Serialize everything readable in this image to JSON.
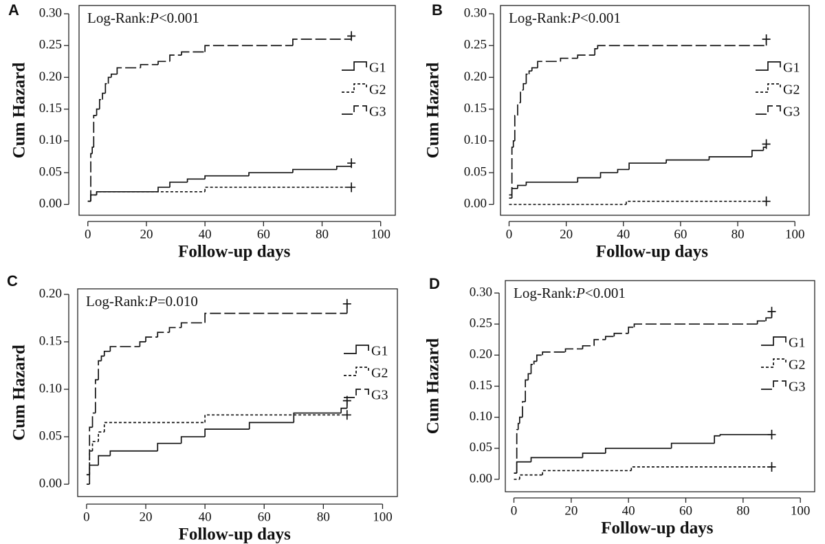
{
  "chart_data": [
    {
      "type": "step",
      "panel": "A",
      "y_label": "Cum Hazard",
      "x_label": "Follow-up days",
      "annotation": {
        "prefix": "Log-Rank:",
        "stat": "P",
        "value": "<0.001"
      },
      "xlim": [
        -3,
        105
      ],
      "ylim": [
        -0.017,
        0.313
      ],
      "xticks": [
        0,
        20,
        40,
        60,
        80,
        100
      ],
      "yticks": [
        {
          "value": 0,
          "label": "0.00"
        },
        {
          "value": 0.05,
          "label": "0.05"
        },
        {
          "value": 0.1,
          "label": "0.10"
        },
        {
          "value": 0.15,
          "label": "0.15"
        },
        {
          "value": 0.2,
          "label": "0.20"
        },
        {
          "value": 0.25,
          "label": "0.25"
        },
        {
          "value": 0.3,
          "label": "0.30"
        }
      ],
      "series": [
        {
          "name": "G1",
          "color": "#111111",
          "dash": "solid",
          "x": [
            0,
            1,
            3,
            24,
            28,
            34,
            40,
            55,
            70,
            85,
            90
          ],
          "values": [
            0.005,
            0.015,
            0.02,
            0.027,
            0.035,
            0.04,
            0.045,
            0.05,
            0.055,
            0.06,
            0.065
          ]
        },
        {
          "name": "G2",
          "color": "#111111",
          "dash": "dotted",
          "x": [
            0,
            1,
            3,
            40,
            90
          ],
          "values": [
            0.005,
            0.015,
            0.02,
            0.027,
            0.027
          ]
        },
        {
          "name": "G3",
          "color": "#111111",
          "dash": "dashed",
          "x": [
            0,
            1,
            1.5,
            2,
            3,
            4,
            5,
            6,
            7,
            8,
            10,
            18,
            24,
            28,
            32,
            40,
            70,
            90
          ],
          "values": [
            0.005,
            0.08,
            0.09,
            0.14,
            0.15,
            0.165,
            0.175,
            0.19,
            0.2,
            0.205,
            0.215,
            0.22,
            0.225,
            0.235,
            0.24,
            0.25,
            0.26,
            0.265
          ]
        }
      ]
    },
    {
      "type": "step",
      "panel": "B",
      "y_label": "Cum Hazard",
      "x_label": "Follow-up days",
      "annotation": {
        "prefix": "Log-Rank:",
        "stat": "P",
        "value": "<0.001"
      },
      "xlim": [
        -3,
        105
      ],
      "ylim": [
        -0.017,
        0.313
      ],
      "xticks": [
        0,
        20,
        40,
        60,
        80,
        100
      ],
      "yticks": [
        {
          "value": 0,
          "label": "0.00"
        },
        {
          "value": 0.05,
          "label": "0.05"
        },
        {
          "value": 0.1,
          "label": "0.10"
        },
        {
          "value": 0.15,
          "label": "0.15"
        },
        {
          "value": 0.2,
          "label": "0.20"
        },
        {
          "value": 0.25,
          "label": "0.25"
        },
        {
          "value": 0.3,
          "label": "0.30"
        }
      ],
      "series": [
        {
          "name": "G1",
          "color": "#111111",
          "dash": "solid",
          "x": [
            0,
            1,
            3,
            6,
            24,
            32,
            38,
            42,
            55,
            70,
            85,
            89,
            90
          ],
          "values": [
            0.015,
            0.025,
            0.03,
            0.035,
            0.042,
            0.05,
            0.055,
            0.065,
            0.07,
            0.075,
            0.085,
            0.09,
            0.095
          ]
        },
        {
          "name": "G2",
          "color": "#111111",
          "dash": "dotted",
          "x": [
            0,
            41,
            90
          ],
          "values": [
            0,
            0.005,
            0.005
          ]
        },
        {
          "name": "G3",
          "color": "#111111",
          "dash": "dashed",
          "x": [
            0,
            1,
            1.5,
            2,
            3,
            4,
            5,
            6,
            7,
            8,
            10,
            18,
            24,
            30,
            31,
            90
          ],
          "values": [
            0.01,
            0.09,
            0.1,
            0.14,
            0.16,
            0.18,
            0.19,
            0.205,
            0.21,
            0.215,
            0.225,
            0.23,
            0.235,
            0.245,
            0.25,
            0.26
          ]
        }
      ]
    },
    {
      "type": "step",
      "panel": "C",
      "y_label": "Cum Hazard",
      "x_label": "Follow-up days",
      "annotation": {
        "prefix": "Log-Rank:",
        "stat": "P",
        "value": "=0.010"
      },
      "xlim": [
        -3,
        105
      ],
      "ylim": [
        -0.013,
        0.2058
      ],
      "xticks": [
        0,
        20,
        40,
        60,
        80,
        100
      ],
      "yticks": [
        {
          "value": 0,
          "label": "0.00"
        },
        {
          "value": 0.05,
          "label": "0.05"
        },
        {
          "value": 0.1,
          "label": "0.10"
        },
        {
          "value": 0.15,
          "label": "0.15"
        },
        {
          "value": 0.2,
          "label": "0.20"
        }
      ],
      "series": [
        {
          "name": "G1",
          "color": "#111111",
          "dash": "solid",
          "x": [
            0,
            1,
            4,
            8,
            24,
            32,
            40,
            55,
            70,
            86,
            88
          ],
          "values": [
            0,
            0.02,
            0.03,
            0.035,
            0.043,
            0.05,
            0.058,
            0.065,
            0.075,
            0.08,
            0.088
          ]
        },
        {
          "name": "G2",
          "color": "#111111",
          "dash": "dotted",
          "x": [
            0,
            1,
            2,
            4,
            6,
            40,
            88
          ],
          "values": [
            0.01,
            0.035,
            0.045,
            0.055,
            0.065,
            0.073,
            0.073
          ]
        },
        {
          "name": "G3",
          "color": "#111111",
          "dash": "dashed",
          "x": [
            0,
            1,
            2,
            3,
            4,
            5,
            6,
            8,
            18,
            20,
            24,
            28,
            32,
            40,
            88
          ],
          "values": [
            0.01,
            0.06,
            0.075,
            0.11,
            0.13,
            0.135,
            0.14,
            0.145,
            0.15,
            0.155,
            0.16,
            0.165,
            0.17,
            0.18,
            0.19
          ]
        }
      ]
    },
    {
      "type": "step",
      "panel": "D",
      "y_label": "Cum Hazard",
      "x_label": "Follow-up days",
      "annotation": {
        "prefix": "Log-Rank:",
        "stat": "P",
        "value": "<0.001"
      },
      "xlim": [
        -3,
        105
      ],
      "ylim": [
        -0.02,
        0.32
      ],
      "xticks": [
        0,
        20,
        40,
        60,
        80,
        100
      ],
      "yticks": [
        {
          "value": 0,
          "label": "0.00"
        },
        {
          "value": 0.05,
          "label": "0.05"
        },
        {
          "value": 0.1,
          "label": "0.10"
        },
        {
          "value": 0.15,
          "label": "0.15"
        },
        {
          "value": 0.2,
          "label": "0.20"
        },
        {
          "value": 0.25,
          "label": "0.25"
        },
        {
          "value": 0.3,
          "label": "0.30"
        }
      ],
      "series": [
        {
          "name": "G1",
          "color": "#111111",
          "dash": "solid",
          "x": [
            0,
            1,
            6,
            24,
            32,
            55,
            70,
            72,
            90
          ],
          "values": [
            0.01,
            0.028,
            0.035,
            0.042,
            0.05,
            0.058,
            0.07,
            0.072,
            0.072
          ]
        },
        {
          "name": "G2",
          "color": "#111111",
          "dash": "dotted",
          "x": [
            0,
            2,
            10,
            41,
            90
          ],
          "values": [
            0,
            0.007,
            0.014,
            0.02,
            0.02
          ]
        },
        {
          "name": "G3",
          "color": "#111111",
          "dash": "dashed",
          "x": [
            0,
            1,
            1.5,
            2,
            3,
            4,
            5,
            6,
            7,
            8,
            10,
            18,
            24,
            28,
            32,
            35,
            40,
            42,
            85,
            88,
            90
          ],
          "values": [
            0.01,
            0.08,
            0.09,
            0.1,
            0.125,
            0.16,
            0.17,
            0.185,
            0.19,
            0.2,
            0.205,
            0.21,
            0.215,
            0.225,
            0.23,
            0.235,
            0.245,
            0.25,
            0.255,
            0.26,
            0.27
          ]
        }
      ]
    }
  ]
}
